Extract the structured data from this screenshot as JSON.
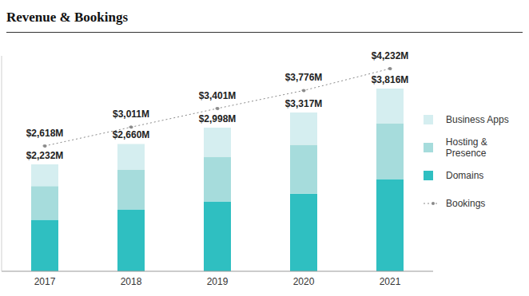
{
  "chart_data": {
    "type": "bar",
    "title": "Revenue & Bookings",
    "categories": [
      "2017",
      "2018",
      "2019",
      "2020",
      "2021"
    ],
    "stacked": true,
    "legend": "right",
    "tick_labels": "x",
    "ylim": [
      0,
      4500
    ],
    "yticks": [
      0,
      4500
    ],
    "series": [
      {
        "name": "Business Apps",
        "color": "#d5eef0",
        "values": [
          452,
          535,
          608,
          677,
          726
        ]
      },
      {
        "name": "Hosting & Presence",
        "color": "#a6dcdc",
        "values": [
          705,
          835,
          930,
          1020,
          1165
        ]
      },
      {
        "name": "Domains",
        "color": "#2fbfc1",
        "values": [
          1075,
          1290,
          1460,
          1620,
          1925
        ]
      },
      {
        "name": "Bookings",
        "type": "line",
        "color": "#8a8a8a",
        "line_style": "dotted",
        "marker": "circle",
        "data_labels": true,
        "values": [
          2618,
          3011,
          3401,
          3776,
          4232
        ],
        "value_labels": [
          "$2,618M",
          "$3,011M",
          "$3,401M",
          "$3,776M",
          "$4,232M"
        ]
      }
    ],
    "totals": {
      "values": [
        2232,
        2660,
        2998,
        3317,
        3816
      ],
      "value_labels": [
        "$2,232M",
        "$2,660M",
        "$2,998M",
        "$3,317M",
        "$3,816M"
      ]
    }
  }
}
